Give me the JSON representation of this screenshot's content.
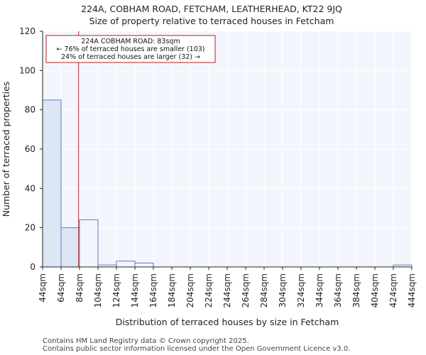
{
  "chart_data": {
    "type": "bar",
    "title": "224A, COBHAM ROAD, FETCHAM, LEATHERHEAD, KT22 9JQ",
    "subtitle": "Size of property relative to terraced houses in Fetcham",
    "xlabel": "Distribution of terraced houses by size in Fetcham",
    "ylabel": "Number of terraced properties",
    "ylim": [
      0,
      120
    ],
    "yticks": [
      0,
      20,
      40,
      60,
      80,
      100,
      120
    ],
    "bin_edges": [
      44,
      64,
      84,
      104,
      124,
      144,
      164,
      184,
      204,
      224,
      244,
      264,
      284,
      304,
      324,
      344,
      364,
      384,
      404,
      424,
      444
    ],
    "tick_labels": [
      "44sqm",
      "64sqm",
      "84sqm",
      "104sqm",
      "124sqm",
      "144sqm",
      "164sqm",
      "184sqm",
      "204sqm",
      "224sqm",
      "244sqm",
      "264sqm",
      "284sqm",
      "304sqm",
      "324sqm",
      "344sqm",
      "364sqm",
      "384sqm",
      "404sqm",
      "424sqm",
      "444sqm"
    ],
    "values": [
      85,
      20,
      24,
      1,
      3,
      2,
      0,
      0,
      0,
      0,
      0,
      0,
      0,
      0,
      0,
      0,
      0,
      0,
      0,
      1
    ],
    "highlight_bins": 2,
    "marker_value": 83,
    "annotation": [
      "224A COBHAM ROAD: 83sqm",
      "← 76% of terraced houses are smaller (103)",
      "24% of terraced houses are larger (32) →"
    ],
    "grid": true,
    "colors": {
      "bar_highlight": "#dce6f5",
      "bar_edge": "#5b7fc4",
      "plot_bg": "#f3f5fd",
      "grid": "#ffffff",
      "marker": "#b22222"
    }
  },
  "footer": [
    "Contains HM Land Registry data © Crown copyright 2025.",
    "Contains public sector information licensed under the Open Government Licence v3.0."
  ]
}
